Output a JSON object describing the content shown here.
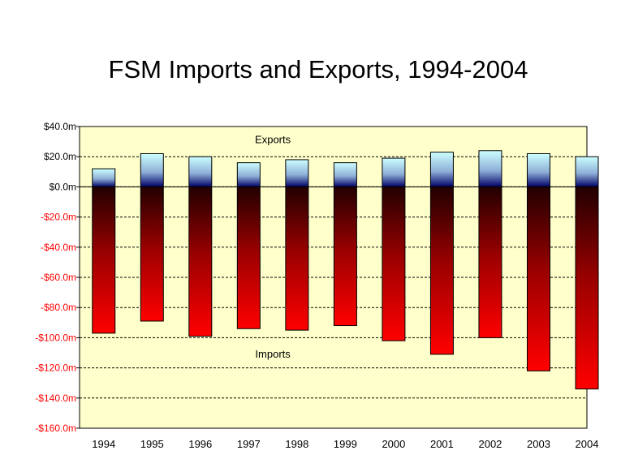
{
  "chart_data": {
    "type": "bar",
    "title": "FSM Imports and Exports, 1994-2004",
    "xlabel": "",
    "ylabel": "",
    "categories": [
      "1994",
      "1995",
      "1996",
      "1997",
      "1998",
      "1999",
      "2000",
      "2001",
      "2002",
      "2003",
      "2004"
    ],
    "series": [
      {
        "name": "Exports",
        "values": [
          12,
          22,
          20,
          16,
          18,
          16,
          19,
          23,
          24,
          22,
          20
        ]
      },
      {
        "name": "Imports",
        "values": [
          -97,
          -89,
          -99,
          -94,
          -95,
          -92,
          -102,
          -111,
          -100,
          -122,
          -134
        ]
      }
    ],
    "ylim": [
      -160,
      40
    ],
    "yticks": [
      40,
      20,
      0,
      -20,
      -40,
      -60,
      -80,
      -100,
      -120,
      -140,
      -160
    ],
    "ytick_labels": [
      "$40.0m",
      "$20.0m",
      "$0.0m",
      "-$20.0m",
      "-$40.0m",
      "-$60.0m",
      "-$80.0m",
      "-$100.0m",
      "-$120.0m",
      "-$140.0m",
      "-$160.0m"
    ],
    "annotations": [
      {
        "text": "Exports",
        "x": "1997.5",
        "y": 31
      },
      {
        "text": "Imports",
        "x": "1997.5",
        "y": -111
      }
    ],
    "grid": true,
    "legend": "none",
    "colors": {
      "plot_background": "#ffffcc",
      "positive_tick_label": "#000000",
      "negative_tick_label": "#ff0000",
      "exports_top": "#ccffff",
      "exports_bottom": "#000066",
      "imports_top": "#220000",
      "imports_bottom": "#ff0000"
    }
  }
}
